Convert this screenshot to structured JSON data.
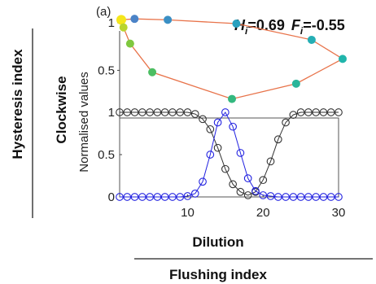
{
  "panel_label": "(a)",
  "annotation": {
    "h_symbol": "H",
    "h_sub": "i",
    "h_value": "=0.69",
    "f_symbol": "F",
    "f_sub": "i",
    "f_value": "=-0.55"
  },
  "side_labels": {
    "hysteresis": "Hysteresis index",
    "clockwise": "Clockwise",
    "normalised": "Normalised values"
  },
  "bottom_labels": {
    "dilution": "Dilution",
    "flushing": "Flushing index"
  },
  "colors": {
    "loop_line": "#e8734a",
    "black_series": "#333333",
    "blue_series": "#2222e0"
  },
  "chart_data": [
    {
      "type": "scatter",
      "yticks": [
        "0.5",
        "1"
      ],
      "ylim": [
        0,
        1.05
      ],
      "xlim": [
        0,
        1
      ],
      "grid": false,
      "points": [
        {
          "x": 0.0,
          "y": 1.03,
          "color": "#f5e61b"
        },
        {
          "x": 0.06,
          "y": 1.04,
          "color": "#4b83c7"
        },
        {
          "x": 0.21,
          "y": 1.03,
          "color": "#3a8fc4"
        },
        {
          "x": 0.52,
          "y": 0.99,
          "color": "#2aa0be"
        },
        {
          "x": 0.86,
          "y": 0.82,
          "color": "#25aeb4"
        },
        {
          "x": 1.0,
          "y": 0.62,
          "color": "#20b5ab"
        },
        {
          "x": 0.79,
          "y": 0.36,
          "color": "#2ab59a"
        },
        {
          "x": 0.5,
          "y": 0.2,
          "color": "#33b87f"
        },
        {
          "x": 0.14,
          "y": 0.48,
          "color": "#4cbe62"
        },
        {
          "x": 0.04,
          "y": 0.78,
          "color": "#7fc83f"
        },
        {
          "x": 0.01,
          "y": 0.95,
          "color": "#b9d52d"
        }
      ]
    },
    {
      "type": "line",
      "xlabel": "Dilution",
      "ylabel": "Normalised values",
      "xlim": [
        1,
        30
      ],
      "ylim": [
        0,
        1
      ],
      "xticks": [
        "10",
        "20",
        "30"
      ],
      "yticks": [
        "0",
        "0.5",
        "1"
      ],
      "x": [
        1,
        2,
        3,
        4,
        5,
        6,
        7,
        8,
        9,
        10,
        11,
        12,
        13,
        14,
        15,
        16,
        17,
        18,
        19,
        20,
        21,
        22,
        23,
        24,
        25,
        26,
        27,
        28,
        29,
        30
      ],
      "series": [
        {
          "values": [
            1,
            1,
            1,
            1,
            1,
            1,
            1,
            1,
            1,
            1,
            0.98,
            0.92,
            0.8,
            0.58,
            0.33,
            0.15,
            0.06,
            0.02,
            0.06,
            0.2,
            0.42,
            0.68,
            0.88,
            0.97,
            1,
            1,
            1,
            1,
            1,
            1
          ]
        },
        {
          "values": [
            0,
            0,
            0,
            0,
            0,
            0,
            0,
            0,
            0,
            0.01,
            0.04,
            0.18,
            0.5,
            0.88,
            1,
            0.83,
            0.52,
            0.22,
            0.07,
            0.02,
            0.01,
            0,
            0,
            0,
            0,
            0,
            0,
            0,
            0,
            0
          ]
        }
      ]
    }
  ]
}
